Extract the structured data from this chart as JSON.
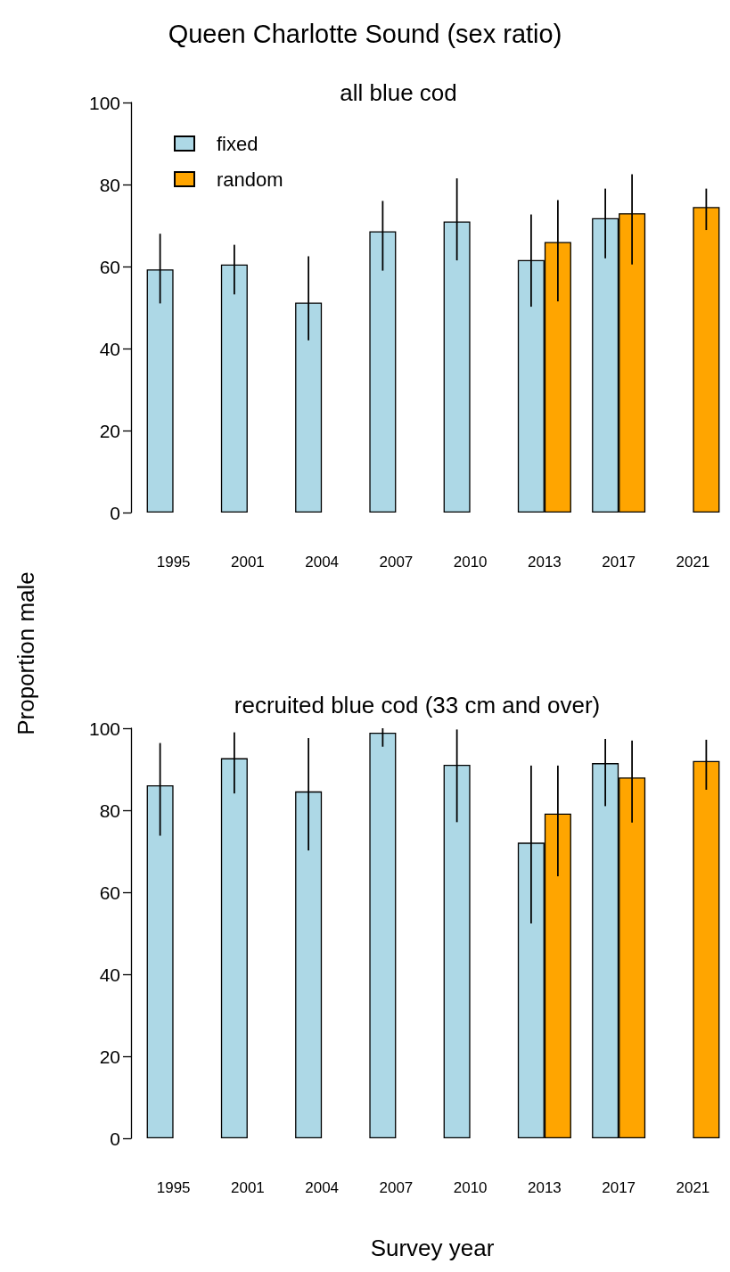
{
  "chart_data": [
    {
      "type": "bar",
      "title": "Queen Charlotte Sound (sex ratio)",
      "subtitle": "all blue cod",
      "ylabel": "Proportion male",
      "categories": [
        "1995",
        "2001",
        "2004",
        "2007",
        "2010",
        "2013",
        "2017",
        "2021"
      ],
      "ylim": [
        0,
        100
      ],
      "yticks": [
        0,
        20,
        40,
        60,
        80,
        100
      ],
      "grid": false,
      "legend": "top left",
      "series": [
        {
          "name": "fixed",
          "color": "#add8e6",
          "values": [
            59.3,
            60.5,
            51.2,
            68.6,
            71,
            61.6,
            71.8,
            null
          ],
          "errors": [
            [
              51,
              68
            ],
            [
              53.2,
              65.3
            ],
            [
              42,
              62.5
            ],
            [
              59,
              76
            ],
            [
              61.5,
              81.5
            ],
            [
              50.2,
              72.7
            ],
            [
              62,
              79
            ],
            null
          ]
        },
        {
          "name": "random",
          "color": "#ffa500",
          "values": [
            null,
            null,
            null,
            null,
            null,
            66,
            73,
            74.5
          ],
          "errors": [
            null,
            null,
            null,
            null,
            null,
            [
              51.5,
              76.2
            ],
            [
              60.5,
              82.5
            ],
            [
              68.9,
              79
            ]
          ]
        }
      ]
    },
    {
      "type": "bar",
      "title": "recruited blue cod (33 cm and over)",
      "xlabel": "Survey year",
      "categories": [
        "1995",
        "2001",
        "2004",
        "2007",
        "2010",
        "2013",
        "2017",
        "2021"
      ],
      "ylim": [
        0,
        100
      ],
      "yticks": [
        0,
        20,
        40,
        60,
        80,
        100
      ],
      "grid": false,
      "series": [
        {
          "color": "#add8e6",
          "values": [
            86.1,
            92.7,
            84.6,
            98.9,
            91.1,
            72.1,
            91.5,
            null
          ],
          "errors": [
            [
              73.8,
              96.4
            ],
            [
              84.1,
              99
            ],
            [
              70.2,
              97.6
            ],
            [
              95.5,
              100
            ],
            [
              77.1,
              99.7
            ],
            [
              52.4,
              90.9
            ],
            [
              81,
              97.4
            ],
            null
          ]
        },
        {
          "color": "#ffa500",
          "values": [
            null,
            null,
            null,
            null,
            null,
            79.2,
            88,
            92
          ],
          "errors": [
            null,
            null,
            null,
            null,
            null,
            [
              63.9,
              90.9
            ],
            [
              77,
              97
            ],
            [
              85,
              97.2
            ]
          ]
        }
      ]
    }
  ]
}
